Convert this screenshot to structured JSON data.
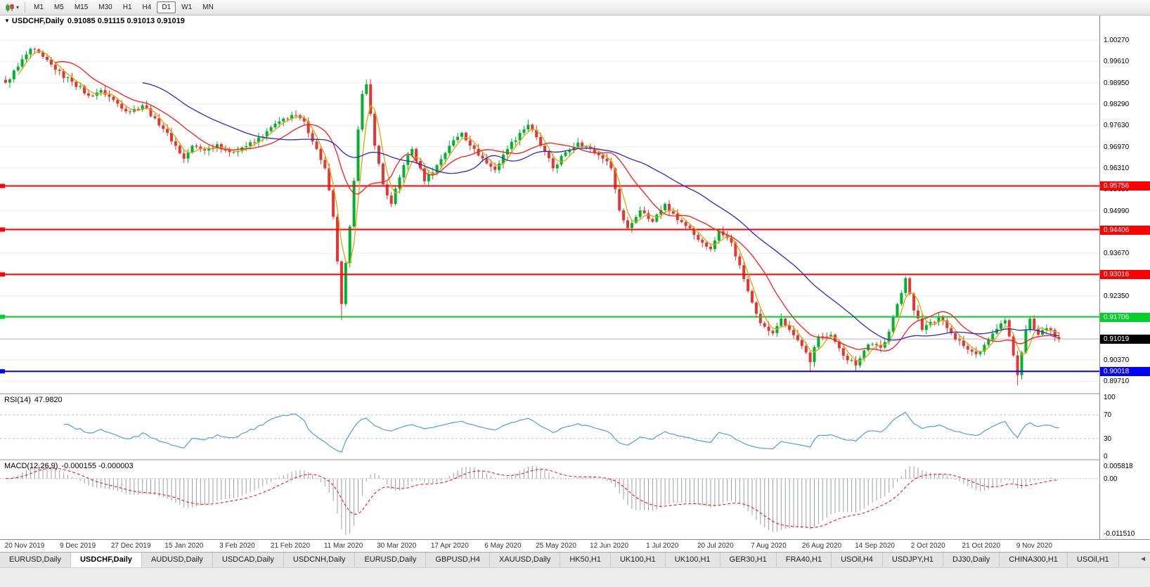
{
  "toolbar": {
    "timeframes": [
      "M1",
      "M5",
      "M15",
      "M30",
      "H1",
      "H4",
      "D1",
      "W1",
      "MN"
    ],
    "active_timeframe": "D1",
    "chart_icon": "candlestick-chart-icon",
    "caret_glyph": "▾"
  },
  "chart": {
    "dropdown_glyph": "▼",
    "symbol": "USDCHF,Daily",
    "ohlc": "0.91085 0.91115 0.91013 0.91019"
  },
  "chart_data": {
    "type": "candlestick",
    "symbol": "USDCHF",
    "timeframe": "Daily",
    "quote": {
      "open": 0.91085,
      "high": 0.91115,
      "low": 0.91013,
      "close": 0.91019
    },
    "price_axis": {
      "range": [
        0.89348,
        1.01031
      ],
      "ticks": [
        "1.00270",
        "0.99610",
        "0.98950",
        "0.98290",
        "0.97630",
        "0.96970",
        "0.96310",
        "0.95650",
        "0.94990",
        "0.94330",
        "0.93670",
        "0.93010",
        "0.92350",
        "0.91690",
        "0.91030",
        "0.90370",
        "0.89710"
      ]
    },
    "time_axis": [
      "20 Nov 2019",
      "9 Dec 2019",
      "27 Dec 2019",
      "15 Jan 2020",
      "3 Feb 2020",
      "21 Feb 2020",
      "11 Mar 2020",
      "30 Mar 2020",
      "17 Apr 2020",
      "6 May 2020",
      "25 May 2020",
      "12 Jun 2020",
      "1 Jul 2020",
      "20 Jul 2020",
      "7 Aug 2020",
      "26 Aug 2020",
      "14 Sep 2020",
      "2 Oct 2020",
      "21 Oct 2020",
      "9 Nov 2020"
    ],
    "hlines": [
      {
        "price": 0.95756,
        "label": "0.95756",
        "color": "#fe0000"
      },
      {
        "price": 0.94406,
        "label": "0.94406",
        "color": "#fe0000"
      },
      {
        "price": 0.93016,
        "label": "0.93016",
        "color": "#fe0000"
      },
      {
        "price": 0.91706,
        "label": "0.91706",
        "color": "#00d02a"
      },
      {
        "price": 0.90018,
        "label": "0.90018",
        "color": "#0000fe"
      }
    ],
    "last_price": {
      "price": 0.91019,
      "label": "0.91019",
      "tag_bg": "#000000",
      "line_color": "#c4c4c4"
    },
    "candles": {
      "count": 255,
      "up_color": "#00b22d",
      "down_color": "#e53535"
    },
    "series_anchors": [
      [
        0,
        0.9895
      ],
      [
        3,
        0.9945
      ],
      [
        6,
        1.0
      ],
      [
        9,
        0.9975
      ],
      [
        12,
        0.9935
      ],
      [
        16,
        0.9898
      ],
      [
        20,
        0.9855
      ],
      [
        23,
        0.9872
      ],
      [
        27,
        0.983
      ],
      [
        30,
        0.9805
      ],
      [
        33,
        0.9825
      ],
      [
        36,
        0.9785
      ],
      [
        39,
        0.974
      ],
      [
        41,
        0.97
      ],
      [
        43,
        0.966
      ],
      [
        45,
        0.97
      ],
      [
        48,
        0.9685
      ],
      [
        51,
        0.9705
      ],
      [
        54,
        0.968
      ],
      [
        57,
        0.9695
      ],
      [
        60,
        0.971
      ],
      [
        63,
        0.9745
      ],
      [
        66,
        0.9775
      ],
      [
        69,
        0.9795
      ],
      [
        72,
        0.9775
      ],
      [
        75,
        0.969
      ],
      [
        77,
        0.963
      ],
      [
        79,
        0.948
      ],
      [
        81,
        0.921
      ],
      [
        83,
        0.945
      ],
      [
        85,
        0.975
      ],
      [
        86,
        0.986
      ],
      [
        87,
        0.989
      ],
      [
        89,
        0.97
      ],
      [
        91,
        0.958
      ],
      [
        93,
        0.952
      ],
      [
        96,
        0.964
      ],
      [
        98,
        0.969
      ],
      [
        101,
        0.959
      ],
      [
        104,
        0.964
      ],
      [
        107,
        0.97
      ],
      [
        110,
        0.974
      ],
      [
        113,
        0.969
      ],
      [
        116,
        0.9645
      ],
      [
        118,
        0.9625
      ],
      [
        121,
        0.969
      ],
      [
        124,
        0.974
      ],
      [
        126,
        0.9765
      ],
      [
        129,
        0.97
      ],
      [
        132,
        0.963
      ],
      [
        135,
        0.968
      ],
      [
        138,
        0.971
      ],
      [
        141,
        0.969
      ],
      [
        144,
        0.966
      ],
      [
        146,
        0.963
      ],
      [
        148,
        0.95
      ],
      [
        150,
        0.9445
      ],
      [
        153,
        0.95
      ],
      [
        156,
        0.9465
      ],
      [
        159,
        0.952
      ],
      [
        162,
        0.947
      ],
      [
        165,
        0.9445
      ],
      [
        168,
        0.94
      ],
      [
        170,
        0.938
      ],
      [
        172,
        0.9435
      ],
      [
        175,
        0.94
      ],
      [
        177,
        0.933
      ],
      [
        179,
        0.925
      ],
      [
        181,
        0.918
      ],
      [
        183,
        0.914
      ],
      [
        185,
        0.912
      ],
      [
        187,
        0.9165
      ],
      [
        189,
        0.913
      ],
      [
        192,
        0.908
      ],
      [
        194,
        0.903
      ],
      [
        196,
        0.911
      ],
      [
        199,
        0.9115
      ],
      [
        202,
        0.905
      ],
      [
        205,
        0.902
      ],
      [
        208,
        0.9085
      ],
      [
        211,
        0.9075
      ],
      [
        213,
        0.9125
      ],
      [
        215,
        0.921
      ],
      [
        217,
        0.929
      ],
      [
        219,
        0.919
      ],
      [
        221,
        0.913
      ],
      [
        223,
        0.9155
      ],
      [
        225,
        0.917
      ],
      [
        228,
        0.912
      ],
      [
        231,
        0.908
      ],
      [
        234,
        0.9055
      ],
      [
        237,
        0.91
      ],
      [
        240,
        0.915
      ],
      [
        241,
        0.916
      ],
      [
        242,
        0.911
      ],
      [
        244,
        0.899
      ],
      [
        245,
        0.906
      ],
      [
        246,
        0.913
      ],
      [
        247,
        0.9165
      ],
      [
        249,
        0.9115
      ],
      [
        251,
        0.9135
      ],
      [
        253,
        0.9108
      ],
      [
        254,
        0.9102
      ]
    ],
    "wick_overrides": {
      "81": [
        null,
        0.916
      ],
      "87": [
        0.99,
        null
      ],
      "194": [
        null,
        0.9
      ],
      "205": [
        null,
        0.9002
      ],
      "217": [
        0.9296,
        null
      ],
      "244": [
        null,
        0.8958
      ]
    },
    "moving_averages": [
      {
        "period": 4,
        "color": "#d8a800"
      },
      {
        "period": 13,
        "color": "#ff1a1a"
      },
      {
        "period": 34,
        "color": "#2929cc"
      }
    ]
  },
  "indicators": {
    "rsi": {
      "name": "RSI(14)",
      "value": "47.9820",
      "color": "#4f9ede",
      "levels": [
        "100",
        "70",
        "30",
        "0"
      ],
      "upper": 70,
      "lower": 30
    },
    "macd": {
      "name": "MACD(12,26,9)",
      "values": "-0.000155 -0.000003",
      "histogram_color": "#9aa0a6",
      "signal_color": "#ff0000",
      "scale": {
        "top": "0.005818",
        "zero": "0.00",
        "bottom": "-0.011510"
      }
    }
  },
  "tabs": {
    "items": [
      "EURUSD,Daily",
      "USDCHF,Daily",
      "AUDUSD,Daily",
      "USDCAD,Daily",
      "USDCNH,Daily",
      "EURUSD,Daily",
      "GBPUSD,H4",
      "XAUUSD,Daily",
      "HK50,H1",
      "UK100,H1",
      "UK100,H1",
      "GER30,H1",
      "FRA40,H1",
      "USOil,H4",
      "USDJPY,H1",
      "DJ30,Daily",
      "CHINA300,H1",
      "USOil,H1"
    ],
    "active_index": 1,
    "scroll_left_glyph": "◄"
  }
}
